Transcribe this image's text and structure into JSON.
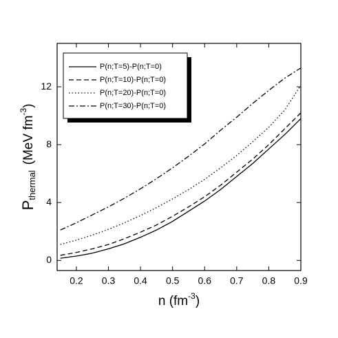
{
  "chart_data": {
    "type": "line",
    "xlabel": {
      "main": "n (fm",
      "sup": "-3",
      "close": ")"
    },
    "ylabel": {
      "main": "P",
      "sub": "thermal",
      "unit": "(MeV fm",
      "sup": "-3",
      "close": ")"
    },
    "x": [
      0.15,
      0.2,
      0.25,
      0.3,
      0.35,
      0.4,
      0.45,
      0.5,
      0.55,
      0.6,
      0.65,
      0.7,
      0.75,
      0.8,
      0.85,
      0.9
    ],
    "series": [
      {
        "name": "P(n;T=5)-P(n;T=0)",
        "color": "#000000",
        "dash": "solid",
        "values": [
          0.15,
          0.3,
          0.5,
          0.8,
          1.15,
          1.6,
          2.1,
          2.7,
          3.4,
          4.1,
          4.9,
          5.8,
          6.7,
          7.7,
          8.7,
          9.8
        ]
      },
      {
        "name": "P(n;T=10)-P(n;T=0)",
        "color": "#000000",
        "dash": "dashed",
        "values": [
          0.35,
          0.55,
          0.8,
          1.1,
          1.5,
          1.95,
          2.45,
          3.05,
          3.7,
          4.4,
          5.2,
          6.1,
          7.0,
          8.0,
          9.1,
          10.2
        ]
      },
      {
        "name": "P(n;T=20)-P(n;T=0)",
        "color": "#000000",
        "dash": "dotted",
        "values": [
          1.1,
          1.4,
          1.75,
          2.15,
          2.6,
          3.1,
          3.65,
          4.25,
          4.9,
          5.6,
          6.4,
          7.25,
          8.2,
          9.2,
          10.4,
          12.1
        ]
      },
      {
        "name": "P(n;T=30)-P(n;T=0)",
        "color": "#000000",
        "dash": "dashdot",
        "values": [
          2.1,
          2.6,
          3.15,
          3.7,
          4.3,
          4.95,
          5.65,
          6.4,
          7.2,
          8.05,
          9.0,
          9.9,
          10.85,
          11.75,
          12.6,
          13.3
        ]
      }
    ],
    "xlim": [
      0.14,
      0.9
    ],
    "xticks": [
      0.2,
      0.3,
      0.4,
      0.5,
      0.6,
      0.7,
      0.8,
      0.9
    ],
    "ylim": [
      -0.7,
      15
    ],
    "yticks": [
      0,
      4,
      8,
      12
    ],
    "legend": "upper left",
    "grid": false
  }
}
